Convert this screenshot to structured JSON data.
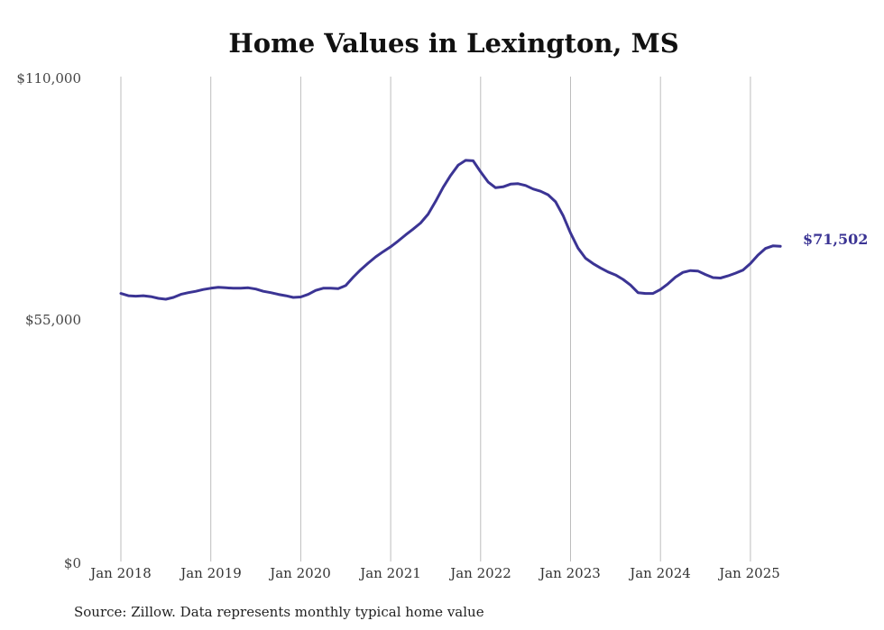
{
  "chart_data": {
    "type": "line",
    "title": "Home Values in Lexington, MS",
    "xlabel": "",
    "ylabel": "",
    "ylim": [
      0,
      110000
    ],
    "yticks": [
      0,
      55000,
      110000
    ],
    "ytick_labels": [
      "$0",
      "$55,000",
      "$110,000"
    ],
    "xtick_labels": [
      "Jan 2018",
      "Jan 2019",
      "Jan 2020",
      "Jan 2021",
      "Jan 2022",
      "Jan 2023",
      "Jan 2024",
      "Jan 2025"
    ],
    "grid": "vertical",
    "series": [
      {
        "name": "Typical home value",
        "color": "#3b3494",
        "start": "2018-01",
        "frequency": "monthly",
        "values": [
          60800,
          60300,
          60200,
          60300,
          60100,
          59700,
          59500,
          59900,
          60600,
          61000,
          61300,
          61700,
          62000,
          62200,
          62100,
          62000,
          62000,
          62100,
          61800,
          61300,
          61000,
          60600,
          60300,
          59900,
          60000,
          60600,
          61500,
          62000,
          62000,
          61900,
          62600,
          64500,
          66200,
          67700,
          69100,
          70300,
          71400,
          72700,
          74100,
          75400,
          76800,
          78800,
          81700,
          84900,
          87600,
          89900,
          91000,
          90900,
          88400,
          86100,
          84800,
          85000,
          85600,
          85700,
          85300,
          84500,
          84000,
          83200,
          81600,
          78500,
          74500,
          71100,
          68800,
          67600,
          66600,
          65700,
          65000,
          64000,
          62700,
          61000,
          60800,
          60800,
          61700,
          63000,
          64500,
          65600,
          66000,
          65900,
          65100,
          64400,
          64300,
          64800,
          65400,
          66100,
          67600,
          69500,
          71000,
          71600,
          71502
        ],
        "end_label": "$71,502"
      }
    ]
  },
  "source_note": "Source: Zillow. Data represents monthly typical home value"
}
